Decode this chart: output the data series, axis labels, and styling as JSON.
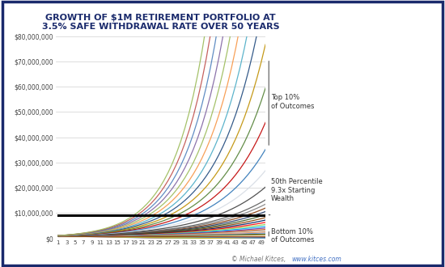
{
  "title": "GROWTH OF $1M RETIREMENT PORTFOLIO AT\n3.5% SAFE WITHDRAWAL RATE OVER 50 YEARS",
  "title_color": "#1a2a6c",
  "background_color": "#ffffff",
  "border_color": "#1a2a6c",
  "years": 50,
  "initial_portfolio": 1000000,
  "withdrawal_rate": 0.035,
  "ylim": [
    0,
    80000000
  ],
  "ytick_vals": [
    0,
    10000000,
    20000000,
    30000000,
    40000000,
    50000000,
    60000000,
    70000000,
    80000000
  ],
  "ytick_labels": [
    "$0",
    "$10,000,000",
    "$20,000,000",
    "$30,000,000",
    "$40,000,000",
    "$50,000,000",
    "$60,000,000",
    "$70,000,000",
    "$80,000,000"
  ],
  "xticks": [
    1,
    3,
    5,
    7,
    9,
    11,
    13,
    15,
    17,
    19,
    21,
    23,
    25,
    27,
    29,
    31,
    33,
    35,
    37,
    39,
    41,
    43,
    45,
    47,
    49
  ],
  "annotation_top": "Top 10%\nof Outcomes",
  "annotation_mid": "50th Percentile\n9.3x Starting\nWealth",
  "annotation_bot": "Bottom 10%\nof Outcomes",
  "copyright_text": "© Michael Kitces,",
  "copyright_url": "www.kitces.com",
  "copyright_color": "#777777",
  "copyright_url_color": "#4472c4",
  "median_color": "#000000",
  "median_value": 9300000,
  "median_lw": 2.2,
  "line_lw": 0.9,
  "colors": [
    "#4472c4",
    "#ed7d31",
    "#a9d18e",
    "#70ad47",
    "#ffc000",
    "#5b9bd5",
    "#264478",
    "#9e480e",
    "#997300",
    "#43682b",
    "#698ed0",
    "#f1975a",
    "#b7b7b7",
    "#c55a11",
    "#7030a0",
    "#00b0f0",
    "#92d050",
    "#ff0000",
    "#002060",
    "#833c00",
    "#375623",
    "#203864",
    "#843c0c",
    "#7f7f7f",
    "#595959",
    "#3f3f3f",
    "#d6dce4",
    "#2e75b6",
    "#c00000",
    "#538135",
    "#bf8f00",
    "#1f497d",
    "#4bacc6",
    "#f79646",
    "#9bbb59",
    "#8064a2",
    "#4f81bd",
    "#c0504d",
    "#9bbb59",
    "#8064a2",
    "#4bacc6",
    "#f79646"
  ]
}
